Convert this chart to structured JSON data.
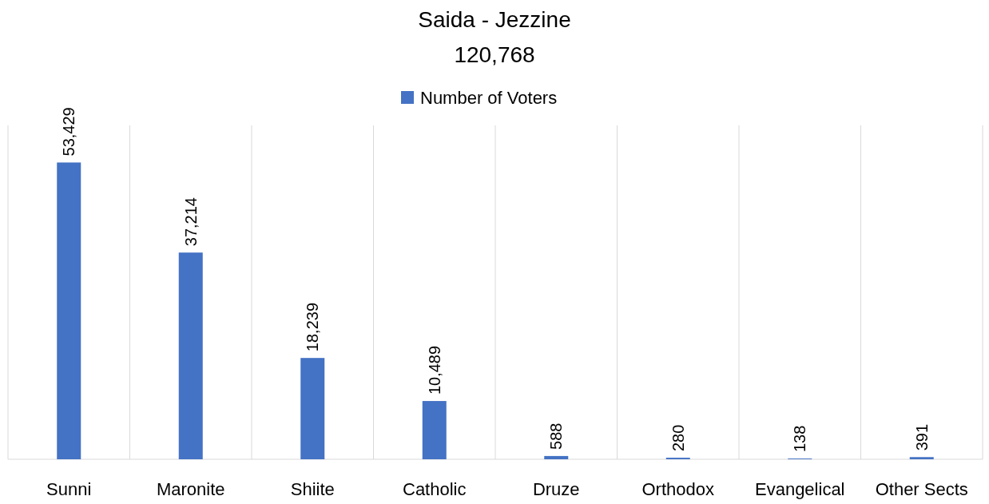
{
  "chart_data": {
    "type": "bar",
    "title": "Saida - Jezzine",
    "subtitle": "120,768",
    "categories": [
      "Sunni",
      "Maronite",
      "Shiite",
      "Catholic",
      "Druze",
      "Orthodox",
      "Evangelical",
      "Other Sects"
    ],
    "series": [
      {
        "name": "Number of Voters",
        "color": "#4472c4",
        "values": [
          53429,
          37214,
          18239,
          10489,
          588,
          280,
          138,
          391
        ],
        "value_labels": [
          "53,429",
          "37,214",
          "18,239",
          "10,489",
          "588",
          "280",
          "138",
          "391"
        ]
      }
    ],
    "grid": "x",
    "legend": "top"
  }
}
